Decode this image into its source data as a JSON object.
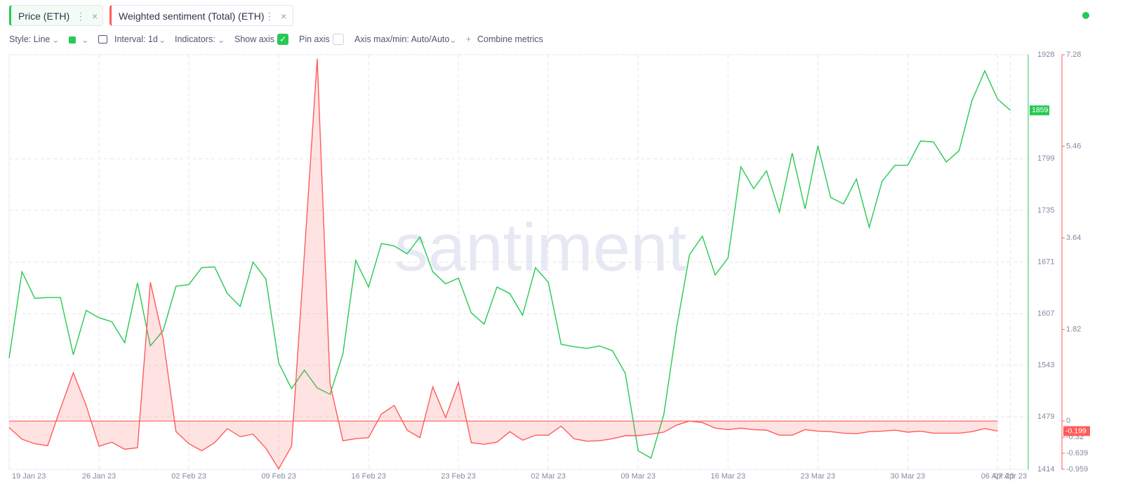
{
  "ui": {
    "style": "Style: Line",
    "interval": "Interval: 1d",
    "indicators": "Indicators:",
    "show_axis": "Show axis",
    "pin_axis": "Pin axis",
    "axis_minmax": "Axis max/min: Auto/Auto",
    "combine": "Combine metrics",
    "watermark": "santiment"
  },
  "chart_data": {
    "type": "line",
    "categories": [
      "19 Jan 23",
      null,
      null,
      null,
      null,
      null,
      null,
      "26 Jan 23",
      null,
      null,
      null,
      null,
      null,
      null,
      "02 Feb 23",
      null,
      null,
      null,
      null,
      null,
      null,
      "09 Feb 23",
      null,
      null,
      null,
      null,
      null,
      null,
      "16 Feb 23",
      null,
      null,
      null,
      null,
      null,
      null,
      "23 Feb 23",
      null,
      null,
      null,
      null,
      null,
      null,
      "02 Mar 23",
      null,
      null,
      null,
      null,
      null,
      null,
      "09 Mar 23",
      null,
      null,
      null,
      null,
      null,
      null,
      "16 Mar 23",
      null,
      null,
      null,
      null,
      null,
      null,
      "23 Mar 23",
      null,
      null,
      null,
      null,
      null,
      null,
      "30 Mar 23",
      null,
      null,
      null,
      null,
      null,
      null,
      "06 Apr 23",
      "07 Apr 23"
    ],
    "series": [
      {
        "name": "Price (ETH)",
        "color": "#26c953",
        "values": [
          1552,
          1659,
          1626,
          1627,
          1627,
          1556,
          1611,
          1602,
          1597,
          1571,
          1645,
          1567,
          1586,
          1641,
          1643,
          1664,
          1665,
          1632,
          1616,
          1671,
          1650,
          1546,
          1514,
          1537,
          1515,
          1507,
          1557,
          1673,
          1640,
          1694,
          1691,
          1681,
          1702,
          1659,
          1644,
          1651,
          1608,
          1594,
          1640,
          1632,
          1605,
          1664,
          1646,
          1569,
          1566,
          1564,
          1567,
          1561,
          1533,
          1437,
          1428,
          1482,
          1590,
          1680,
          1703,
          1655,
          1676,
          1789,
          1762,
          1784,
          1733,
          1806,
          1737,
          1815,
          1751,
          1743,
          1774,
          1714,
          1771,
          1791,
          1791,
          1821,
          1820,
          1795,
          1809,
          1871,
          1908,
          1873,
          1859
        ]
      },
      {
        "name": "Weighted sentiment (Total) (ETH)",
        "color": "#ff5b5b",
        "axis": "y2",
        "values": [
          -0.13,
          -0.36,
          -0.45,
          -0.49,
          0.25,
          0.96,
          0.31,
          -0.5,
          -0.42,
          -0.56,
          -0.53,
          2.76,
          1.63,
          -0.21,
          -0.45,
          -0.59,
          -0.43,
          -0.15,
          -0.31,
          -0.26,
          -0.54,
          -0.95,
          -0.5,
          3.32,
          7.2,
          0.74,
          -0.39,
          -0.35,
          -0.33,
          0.14,
          0.31,
          -0.18,
          -0.33,
          0.68,
          0.07,
          0.77,
          -0.43,
          -0.46,
          -0.42,
          -0.21,
          -0.38,
          -0.28,
          -0.28,
          -0.1,
          -0.35,
          -0.4,
          -0.39,
          -0.35,
          -0.29,
          -0.29,
          -0.26,
          -0.22,
          -0.08,
          0,
          -0.03,
          -0.14,
          -0.17,
          -0.14,
          -0.17,
          -0.18,
          -0.28,
          -0.28,
          -0.17,
          -0.2,
          -0.21,
          -0.24,
          -0.25,
          -0.21,
          -0.2,
          -0.18,
          -0.22,
          -0.2,
          -0.24,
          -0.24,
          -0.24,
          -0.21,
          -0.15,
          -0.199,
          null
        ]
      }
    ],
    "ylim": [
      1414,
      1928
    ],
    "yticks": [
      1414,
      1479,
      1543,
      1607,
      1671,
      1735,
      1799,
      1928
    ],
    "y2lim": [
      -0.959,
      7.28
    ],
    "y2ticks": [
      -0.959,
      -0.639,
      -0.32,
      0,
      1.82,
      3.64,
      5.46,
      7.28
    ],
    "grid": true
  }
}
